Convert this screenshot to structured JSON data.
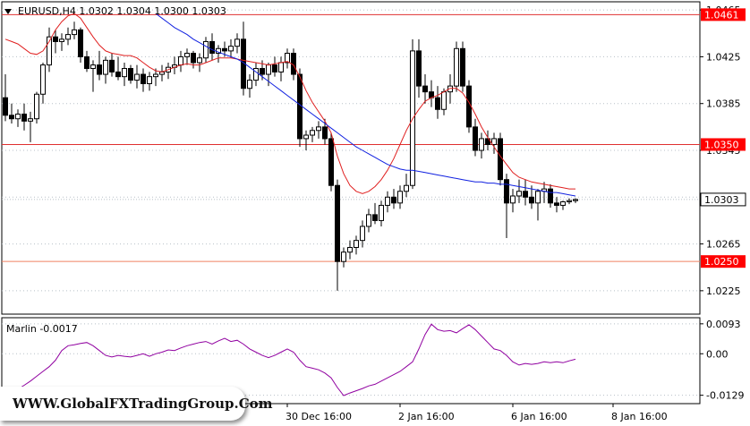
{
  "header": {
    "symbol_line": "EURUSD,H4 1.0302 1.0304 1.0300 1.0303"
  },
  "indicator": {
    "label": "Marlin -0.0017"
  },
  "watermark": {
    "text": "WWW.GlobalFXTradingGroup.Com"
  },
  "colors": {
    "background": "#ffffff",
    "candle": "#000000",
    "ma_fast": "#e02020",
    "ma_slow": "#1020e0",
    "level_line": "#e03030",
    "level_line_light": "#f08060",
    "oscillator": "#9000a0",
    "grid": "#b8c0c8",
    "price_tag_current": "#ffffff",
    "price_tag_level": "#ff0000"
  },
  "chart_data": [
    {
      "type": "candlestick",
      "title": "EURUSD,H4 1.0302 1.0304 1.0300 1.0303",
      "ylim": [
        1.0205,
        1.0472
      ],
      "y_ticks": [
        1.0465,
        1.0425,
        1.0385,
        1.0345,
        1.0305,
        1.0265,
        1.0225
      ],
      "x_tick_labels": [
        "30 Dec 16:00",
        "2 Jan 16:00",
        "6 Jan 16:00",
        "8 Jan 16:00"
      ],
      "x_tick_index": [
        45,
        63,
        81,
        97
      ],
      "horizontal_levels": [
        {
          "value": 1.0461,
          "label": "1.0461",
          "style": "level"
        },
        {
          "value": 1.035,
          "label": "1.0350",
          "style": "level"
        },
        {
          "value": 1.025,
          "label": "1.0250",
          "style": "level_light"
        }
      ],
      "current_price": {
        "value": 1.0303,
        "label": "1.0303"
      },
      "candles_ohlc": [
        [
          1.039,
          1.041,
          1.037,
          1.0375
        ],
        [
          1.0375,
          1.0385,
          1.0368,
          1.0372
        ],
        [
          1.0372,
          1.038,
          1.0365,
          1.0376
        ],
        [
          1.0376,
          1.0385,
          1.0362,
          1.037
        ],
        [
          1.037,
          1.0378,
          1.0352,
          1.0372
        ],
        [
          1.0372,
          1.0395,
          1.0368,
          1.0393
        ],
        [
          1.0393,
          1.042,
          1.0385,
          1.0418
        ],
        [
          1.0418,
          1.045,
          1.0412,
          1.0442
        ],
        [
          1.0442,
          1.0448,
          1.0428,
          1.0438
        ],
        [
          1.0438,
          1.0445,
          1.043,
          1.044
        ],
        [
          1.044,
          1.045,
          1.0435,
          1.0444
        ],
        [
          1.0444,
          1.0455,
          1.044,
          1.0448
        ],
        [
          1.0448,
          1.045,
          1.042,
          1.0425
        ],
        [
          1.0425,
          1.043,
          1.0412,
          1.0415
        ],
        [
          1.0415,
          1.0422,
          1.0395,
          1.0418
        ],
        [
          1.0418,
          1.043,
          1.0405,
          1.041
        ],
        [
          1.041,
          1.0425,
          1.0402,
          1.0422
        ],
        [
          1.0422,
          1.0428,
          1.0408,
          1.0412
        ],
        [
          1.0412,
          1.0425,
          1.0405,
          1.0408
        ],
        [
          1.0408,
          1.042,
          1.04,
          1.0415
        ],
        [
          1.0415,
          1.0418,
          1.0402,
          1.0405
        ],
        [
          1.0405,
          1.0418,
          1.0398,
          1.041
        ],
        [
          1.041,
          1.0415,
          1.0395,
          1.0402
        ],
        [
          1.0402,
          1.0412,
          1.0396,
          1.0408
        ],
        [
          1.0408,
          1.0415,
          1.04,
          1.041
        ],
        [
          1.041,
          1.0418,
          1.0404,
          1.0412
        ],
        [
          1.0412,
          1.042,
          1.0406,
          1.0416
        ],
        [
          1.0416,
          1.0425,
          1.041,
          1.0418
        ],
        [
          1.0418,
          1.043,
          1.0412,
          1.0425
        ],
        [
          1.0425,
          1.0432,
          1.0418,
          1.0428
        ],
        [
          1.0428,
          1.043,
          1.0415,
          1.042
        ],
        [
          1.042,
          1.0428,
          1.0412,
          1.0424
        ],
        [
          1.0424,
          1.0442,
          1.042,
          1.0438
        ],
        [
          1.0438,
          1.0445,
          1.0422,
          1.0428
        ],
        [
          1.0428,
          1.0435,
          1.042,
          1.0432
        ],
        [
          1.0432,
          1.0438,
          1.0425,
          1.043
        ],
        [
          1.043,
          1.044,
          1.0424,
          1.0434
        ],
        [
          1.0434,
          1.0445,
          1.0428,
          1.044
        ],
        [
          1.044,
          1.0455,
          1.0392,
          1.0398
        ],
        [
          1.0398,
          1.041,
          1.039,
          1.0405
        ],
        [
          1.0405,
          1.042,
          1.04,
          1.0415
        ],
        [
          1.0415,
          1.0422,
          1.0405,
          1.041
        ],
        [
          1.041,
          1.042,
          1.04,
          1.0418
        ],
        [
          1.0418,
          1.0425,
          1.0408,
          1.0412
        ],
        [
          1.0412,
          1.0425,
          1.0404,
          1.042
        ],
        [
          1.042,
          1.0432,
          1.0415,
          1.0428
        ],
        [
          1.0428,
          1.0432,
          1.0405,
          1.041
        ],
        [
          1.041,
          1.0415,
          1.0348,
          1.0355
        ],
        [
          1.0355,
          1.0362,
          1.0345,
          1.0358
        ],
        [
          1.0358,
          1.0365,
          1.0352,
          1.0362
        ],
        [
          1.0362,
          1.037,
          1.0355,
          1.0365
        ],
        [
          1.0365,
          1.0372,
          1.035,
          1.0355
        ],
        [
          1.0355,
          1.036,
          1.031,
          1.0315
        ],
        [
          1.0315,
          1.032,
          1.0225,
          1.025
        ],
        [
          1.025,
          1.0262,
          1.0245,
          1.0258
        ],
        [
          1.0258,
          1.0268,
          1.0252,
          1.0262
        ],
        [
          1.0262,
          1.0272,
          1.0256,
          1.0268
        ],
        [
          1.0268,
          1.0285,
          1.0262,
          1.028
        ],
        [
          1.028,
          1.0295,
          1.0275,
          1.029
        ],
        [
          1.029,
          1.03,
          1.0282,
          1.0285
        ],
        [
          1.0285,
          1.0302,
          1.028,
          1.0298
        ],
        [
          1.0298,
          1.031,
          1.0292,
          1.0305
        ],
        [
          1.0305,
          1.0312,
          1.0295,
          1.03
        ],
        [
          1.03,
          1.0315,
          1.0295,
          1.031
        ],
        [
          1.031,
          1.0325,
          1.0305,
          1.0315
        ],
        [
          1.0315,
          1.044,
          1.0312,
          1.043
        ],
        [
          1.043,
          1.044,
          1.039,
          1.04
        ],
        [
          1.04,
          1.041,
          1.0385,
          1.0395
        ],
        [
          1.0395,
          1.0405,
          1.0382,
          1.039
        ],
        [
          1.039,
          1.04,
          1.0372,
          1.038
        ],
        [
          1.038,
          1.0398,
          1.0375,
          1.0395
        ],
        [
          1.0395,
          1.041,
          1.0385,
          1.04
        ],
        [
          1.04,
          1.0438,
          1.0395,
          1.0432
        ],
        [
          1.0432,
          1.0438,
          1.0395,
          1.04
        ],
        [
          1.04,
          1.0405,
          1.036,
          1.0365
        ],
        [
          1.0365,
          1.0372,
          1.034,
          1.0345
        ],
        [
          1.0345,
          1.036,
          1.0338,
          1.0355
        ],
        [
          1.0355,
          1.0362,
          1.0345,
          1.035
        ],
        [
          1.035,
          1.036,
          1.0342,
          1.0355
        ],
        [
          1.0355,
          1.036,
          1.0315,
          1.032
        ],
        [
          1.032,
          1.0325,
          1.027,
          1.03
        ],
        [
          1.03,
          1.0312,
          1.0292,
          1.0306
        ],
        [
          1.0306,
          1.032,
          1.03,
          1.031
        ],
        [
          1.031,
          1.032,
          1.0298,
          1.0305
        ],
        [
          1.0305,
          1.0315,
          1.0295,
          1.03
        ],
        [
          1.03,
          1.0312,
          1.0285,
          1.031
        ],
        [
          1.031,
          1.0318,
          1.03,
          1.0312
        ],
        [
          1.0312,
          1.0316,
          1.0296,
          1.03
        ],
        [
          1.03,
          1.0305,
          1.0292,
          1.0298
        ],
        [
          1.0298,
          1.0302,
          1.0294,
          1.0301
        ],
        [
          1.0301,
          1.0304,
          1.0299,
          1.0302
        ],
        [
          1.0302,
          1.0304,
          1.03,
          1.0303
        ]
      ],
      "ma_fast": [
        1.044,
        1.0438,
        1.0436,
        1.0432,
        1.0428,
        1.0427,
        1.043,
        1.0438,
        1.0448,
        1.0455,
        1.046,
        1.0462,
        1.0458,
        1.045,
        1.0442,
        1.0435,
        1.043,
        1.0428,
        1.0427,
        1.0426,
        1.0426,
        1.0424,
        1.042,
        1.0416,
        1.0413,
        1.0412,
        1.0414,
        1.0416,
        1.0418,
        1.0419,
        1.0418,
        1.0418,
        1.042,
        1.0422,
        1.0424,
        1.0424,
        1.0424,
        1.0423,
        1.0422,
        1.0421,
        1.042,
        1.0419,
        1.0418,
        1.0419,
        1.042,
        1.0421,
        1.0418,
        1.0408,
        1.0396,
        1.0386,
        1.0378,
        1.037,
        1.036,
        1.034,
        1.0325,
        1.0315,
        1.031,
        1.0308,
        1.031,
        1.0314,
        1.032,
        1.0328,
        1.0338,
        1.035,
        1.0362,
        1.0372,
        1.038,
        1.0387,
        1.039,
        1.0392,
        1.0395,
        1.0398,
        1.0398,
        1.0394,
        1.0386,
        1.0376,
        1.0365,
        1.0356,
        1.0348,
        1.034,
        1.0333,
        1.0326,
        1.0322,
        1.032,
        1.0318,
        1.0317,
        1.0316,
        1.0315,
        1.0314,
        1.0313,
        1.0312,
        1.0312
      ],
      "ma_slow": [
        null,
        null,
        null,
        null,
        null,
        null,
        null,
        null,
        null,
        null,
        null,
        null,
        null,
        null,
        null,
        null,
        null,
        null,
        null,
        null,
        null,
        null,
        null,
        null,
        1.0462,
        1.0458,
        1.0454,
        1.045,
        1.0447,
        1.0444,
        1.044,
        1.0437,
        1.0434,
        1.0431,
        1.0429,
        1.0427,
        1.0425,
        1.0423,
        1.042,
        1.0416,
        1.0412,
        1.0408,
        1.0404,
        1.04,
        1.0396,
        1.0392,
        1.0388,
        1.0384,
        1.038,
        1.0376,
        1.0372,
        1.0368,
        1.0364,
        1.036,
        1.0356,
        1.0352,
        1.0348,
        1.0345,
        1.0342,
        1.0339,
        1.0336,
        1.0333,
        1.0331,
        1.0329,
        1.0328,
        1.0328,
        1.0327,
        1.0326,
        1.0325,
        1.0324,
        1.0323,
        1.0322,
        1.0321,
        1.032,
        1.0319,
        1.0318,
        1.0318,
        1.0317,
        1.0317,
        1.0316,
        1.0316,
        1.0315,
        1.0314,
        1.0313,
        1.0312,
        1.0311,
        1.031,
        1.0309,
        1.0309,
        1.0308,
        1.0307,
        1.0306
      ]
    },
    {
      "type": "line",
      "title": "Marlin -0.0017",
      "ylim": [
        -0.0155,
        0.0112
      ],
      "y_ticks": [
        0.0093,
        0.0,
        -0.0129
      ],
      "y_tick_labels": [
        "0.0093",
        "0.00",
        "-0.0129"
      ],
      "series": [
        {
          "name": "Marlin",
          "values": [
            -0.0125,
            -0.0118,
            -0.011,
            -0.0098,
            -0.0085,
            -0.007,
            -0.0055,
            -0.004,
            -0.002,
            0.001,
            0.0025,
            0.0028,
            0.0032,
            0.0035,
            0.0025,
            0.001,
            -0.0005,
            -0.001,
            -0.0005,
            -0.0008,
            -0.001,
            -0.0005,
            0.0,
            -0.0008,
            0.0,
            0.0005,
            0.0012,
            0.001,
            0.0018,
            0.0025,
            0.003,
            0.0035,
            0.0038,
            0.003,
            0.004,
            0.0048,
            0.0038,
            0.0042,
            0.003,
            0.0015,
            0.0005,
            -0.0005,
            -0.0012,
            -0.0005,
            0.0005,
            0.0015,
            0.0005,
            -0.002,
            -0.004,
            -0.0045,
            -0.005,
            -0.006,
            -0.0075,
            -0.0105,
            -0.013,
            -0.0122,
            -0.0115,
            -0.0108,
            -0.01,
            -0.0095,
            -0.0085,
            -0.0075,
            -0.0065,
            -0.0055,
            -0.004,
            -0.0025,
            0.0015,
            0.006,
            0.0092,
            0.0075,
            0.007,
            0.0072,
            0.0065,
            0.0078,
            0.009,
            0.0075,
            0.0055,
            0.0035,
            0.0015,
            0.001,
            -0.0005,
            -0.0025,
            -0.0035,
            -0.003,
            -0.0033,
            -0.003,
            -0.0025,
            -0.0028,
            -0.0025,
            -0.0028,
            -0.0022,
            -0.0017
          ]
        }
      ]
    }
  ]
}
